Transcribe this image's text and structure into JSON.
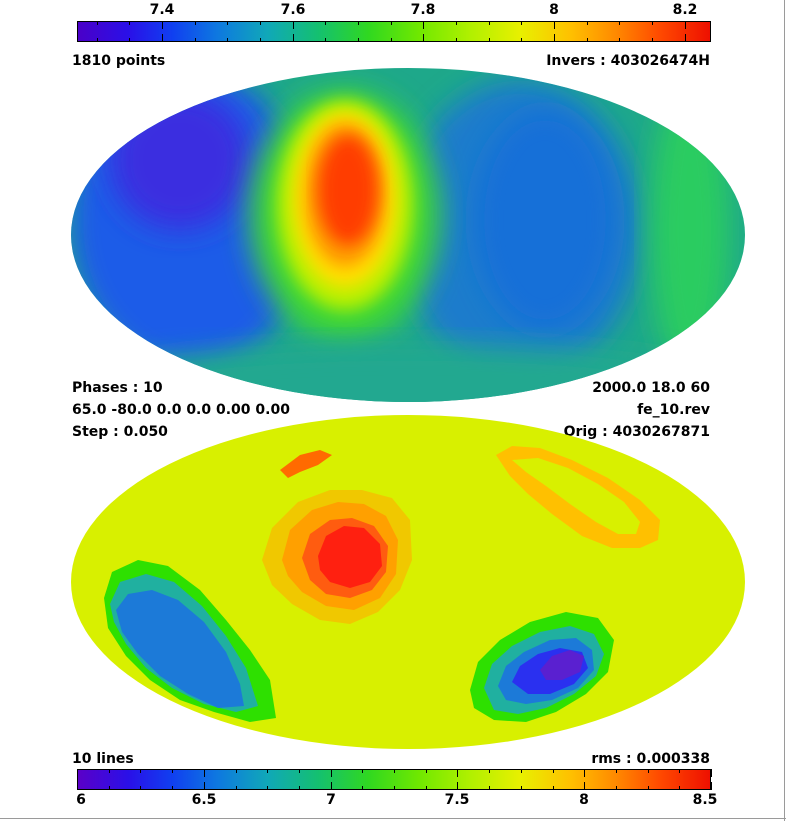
{
  "top_colorbar": {
    "tick_labels": [
      "7.4",
      "7.6",
      "7.8",
      "8",
      "8.2"
    ],
    "tick_values": [
      7.4,
      7.6,
      7.8,
      8.0,
      8.2
    ],
    "range": [
      7.27,
      8.24
    ]
  },
  "top_panel": {
    "left_label": "1810 points",
    "right_label": "Invers : 403026474H"
  },
  "middle_info": {
    "phases": "Phases : 10",
    "params": "65.0 -80.0 0.0 0.0 0.00 0.00",
    "step": "Step : 0.050",
    "epoch": "2000.0 18.0 60",
    "file": "fe_10.rev",
    "orig": "Orig : 4030267871"
  },
  "bottom_panel": {
    "left_label": "10 lines",
    "right_label": "rms :  0.000338"
  },
  "bottom_colorbar": {
    "tick_labels": [
      "6",
      "6.5",
      "7",
      "7.5",
      "8",
      "8.5"
    ],
    "tick_values": [
      6.0,
      6.5,
      7.0,
      7.5,
      8.0,
      8.5
    ],
    "range": [
      6.0,
      8.5
    ]
  },
  "colors": {
    "map_top_background": "#1ea88a",
    "map_bottom_background": "#d8f000",
    "page_background": "#ffffff"
  }
}
